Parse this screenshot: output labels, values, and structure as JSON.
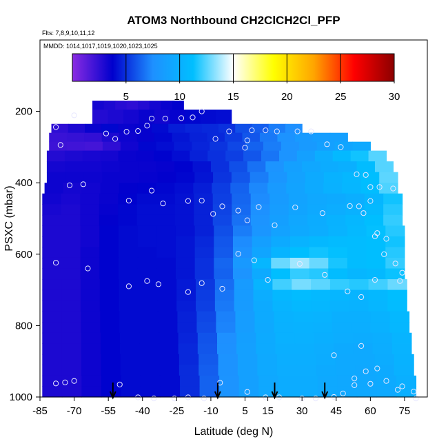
{
  "chart_data": {
    "type": "heatmap",
    "title": "ATOM3 Northbound CH2ClCH2Cl_PFP",
    "flights_label": "Flts: 7,8,9,10,11,12",
    "dates_label": "MMDD: 1014,1017,1019,1020,1023,1025",
    "xlabel": "Latitude (deg N)",
    "ylabel": "PSXC (mbar)",
    "xlim": [
      -85,
      85
    ],
    "ylim": [
      1000,
      0
    ],
    "x_ticks": [
      -85,
      -70,
      -55,
      -40,
      -25,
      -10,
      5,
      15,
      30,
      45,
      60,
      75
    ],
    "y_ticks": [
      200,
      400,
      600,
      800,
      1000
    ],
    "colorbar": {
      "min": 0,
      "max": 30,
      "ticks": [
        5,
        10,
        15,
        20,
        25,
        30
      ],
      "colors": [
        "#8a2be2",
        "#0000cd",
        "#1e90ff",
        "#00bfff",
        "#ffffff",
        "#ffff00",
        "#ffa500",
        "#ff0000",
        "#8b0000"
      ]
    },
    "grid_rows": [
      {
        "p_top": 170,
        "p_bot": 195,
        "lat0": -62,
        "lat1": -22,
        "values": [
          3.2,
          3.0,
          2.7,
          2.5,
          2.8,
          3.2,
          3.5,
          3.7
        ]
      },
      {
        "p_top": 195,
        "p_bot": 235,
        "lat0": -62,
        "lat1": -1,
        "values": [
          2.8,
          3.0,
          3.2,
          3.5,
          3.3,
          3.6,
          3.9,
          4.0,
          4.1
        ]
      },
      {
        "p_top": 235,
        "p_bot": 260,
        "lat0": -80,
        "lat1": 30,
        "values": [
          2.5,
          3.0,
          3.5,
          3.9,
          3.5,
          3.6,
          4.0,
          4.5,
          4.7,
          4.8,
          5.0,
          5.8,
          6.2,
          7.0,
          7.5
        ]
      },
      {
        "p_top": 260,
        "p_bot": 285,
        "lat0": -81,
        "lat1": 50,
        "values": [
          2.2,
          2.3,
          2.4,
          3.0,
          3.4,
          3.6,
          3.9,
          4.3,
          4.6,
          4.8,
          5.3,
          6.0,
          6.9,
          7.7,
          8.3,
          8.6,
          8.8
        ]
      },
      {
        "p_top": 285,
        "p_bot": 310,
        "lat0": -81,
        "lat1": 60,
        "values": [
          2.1,
          2.0,
          1.9,
          2.5,
          3.3,
          3.9,
          4.1,
          4.4,
          4.7,
          5.1,
          5.6,
          6.3,
          7.0,
          7.8,
          8.3,
          8.8,
          9.2,
          9.5
        ]
      },
      {
        "p_top": 310,
        "p_bot": 340,
        "lat0": -82,
        "lat1": 67,
        "values": [
          2.8,
          3.0,
          3.1,
          3.2,
          3.5,
          3.6,
          3.8,
          4.1,
          4.6,
          5.0,
          5.4,
          6.0,
          6.8,
          7.8,
          8.8,
          9.8,
          10.8,
          11.5,
          12.5
        ]
      },
      {
        "p_top": 340,
        "p_bot": 370,
        "lat0": -82,
        "lat1": 70,
        "values": [
          3.2,
          3.3,
          3.3,
          3.4,
          3.5,
          3.5,
          3.6,
          3.8,
          4.2,
          5.0,
          5.8,
          6.7,
          7.8,
          8.8,
          9.3,
          9.7,
          10.0,
          11.0,
          12.5
        ]
      },
      {
        "p_top": 370,
        "p_bot": 400,
        "lat0": -82,
        "lat1": 72,
        "values": [
          3.4,
          3.4,
          3.4,
          3.5,
          3.5,
          3.6,
          3.7,
          3.9,
          4.3,
          5.1,
          6.0,
          7.0,
          8.0,
          8.9,
          9.6,
          10.2,
          10.6,
          11.2,
          12.6
        ]
      },
      {
        "p_top": 400,
        "p_bot": 430,
        "lat0": -83,
        "lat1": 72,
        "values": [
          3.4,
          3.2,
          3.3,
          3.5,
          3.7,
          3.8,
          3.9,
          4.1,
          4.5,
          5.3,
          6.3,
          7.3,
          8.3,
          9.0,
          9.6,
          10.1,
          10.5,
          11.1,
          12.4
        ]
      },
      {
        "p_top": 430,
        "p_bot": 460,
        "lat0": -84,
        "lat1": 74,
        "values": [
          3.3,
          3.1,
          3.3,
          3.5,
          3.8,
          4.0,
          4.0,
          4.2,
          4.6,
          5.4,
          6.4,
          7.4,
          8.4,
          9.0,
          9.4,
          9.6,
          9.9,
          10.5,
          11.5
        ]
      },
      {
        "p_top": 460,
        "p_bot": 490,
        "lat0": -84,
        "lat1": 74,
        "values": [
          3.1,
          3.0,
          3.3,
          3.6,
          3.9,
          4.1,
          4.1,
          4.2,
          4.6,
          5.5,
          6.5,
          7.6,
          8.5,
          9.1,
          9.5,
          9.8,
          10.1,
          10.8,
          11.8
        ]
      },
      {
        "p_top": 490,
        "p_bot": 520,
        "lat0": -84,
        "lat1": 74,
        "values": [
          3.0,
          3.0,
          3.3,
          3.7,
          3.9,
          4.1,
          4.1,
          4.2,
          4.6,
          5.6,
          6.7,
          7.8,
          8.7,
          9.3,
          9.7,
          10.2,
          10.6,
          11.2,
          12.0
        ]
      },
      {
        "p_top": 520,
        "p_bot": 550,
        "lat0": -84,
        "lat1": 75,
        "values": [
          3.0,
          3.0,
          3.3,
          3.8,
          4.0,
          4.1,
          4.1,
          4.2,
          4.6,
          5.8,
          7.0,
          8.0,
          8.9,
          9.5,
          9.8,
          10.3,
          10.8,
          11.3,
          11.8
        ]
      },
      {
        "p_top": 550,
        "p_bot": 580,
        "lat0": -84,
        "lat1": 75,
        "values": [
          3.0,
          3.0,
          3.3,
          3.8,
          4.0,
          4.1,
          4.1,
          4.3,
          4.8,
          6.0,
          7.4,
          8.7,
          9.6,
          10.3,
          10.7,
          10.9,
          11.0,
          11.2,
          11.5
        ]
      },
      {
        "p_top": 580,
        "p_bot": 610,
        "lat0": -84,
        "lat1": 75,
        "values": [
          3.0,
          3.0,
          3.4,
          3.8,
          4.0,
          4.0,
          4.1,
          4.3,
          4.9,
          6.1,
          7.6,
          9.2,
          10.4,
          11.2,
          11.5,
          11.3,
          11.0,
          11.2,
          11.8
        ]
      },
      {
        "p_top": 610,
        "p_bot": 640,
        "lat0": -84,
        "lat1": 75,
        "values": [
          3.0,
          3.0,
          3.4,
          3.8,
          4.0,
          4.0,
          4.0,
          4.3,
          5.0,
          6.4,
          8.2,
          10.5,
          12.8,
          13.6,
          12.8,
          11.6,
          11.0,
          11.2,
          12.0
        ]
      },
      {
        "p_top": 640,
        "p_bot": 670,
        "lat0": -84,
        "lat1": 75,
        "values": [
          3.0,
          3.0,
          3.4,
          3.8,
          4.0,
          4.0,
          4.0,
          4.3,
          5.0,
          6.3,
          7.8,
          9.6,
          11.2,
          12.0,
          11.8,
          11.0,
          10.5,
          10.8,
          11.4
        ]
      },
      {
        "p_top": 670,
        "p_bot": 700,
        "lat0": -84,
        "lat1": 76,
        "values": [
          3.0,
          3.0,
          3.4,
          3.8,
          4.0,
          4.0,
          4.0,
          4.4,
          5.2,
          6.6,
          8.4,
          10.4,
          12.2,
          13.0,
          12.6,
          12.0,
          11.8,
          12.2,
          12.8
        ]
      },
      {
        "p_top": 700,
        "p_bot": 730,
        "lat0": -84,
        "lat1": 76,
        "values": [
          3.0,
          3.0,
          3.4,
          3.8,
          4.0,
          4.0,
          4.0,
          4.4,
          5.3,
          6.8,
          8.4,
          9.8,
          10.7,
          11.0,
          10.8,
          10.5,
          10.4,
          10.7,
          11.2
        ]
      },
      {
        "p_top": 730,
        "p_bot": 760,
        "lat0": -84,
        "lat1": 76,
        "values": [
          3.0,
          3.0,
          3.4,
          3.8,
          4.0,
          4.0,
          4.0,
          4.5,
          5.4,
          6.9,
          8.4,
          9.6,
          10.4,
          10.7,
          10.6,
          10.3,
          10.2,
          10.5,
          11.0
        ]
      },
      {
        "p_top": 760,
        "p_bot": 790,
        "lat0": -84,
        "lat1": 77,
        "values": [
          3.0,
          3.0,
          3.4,
          3.8,
          4.0,
          4.0,
          4.0,
          4.6,
          5.6,
          7.1,
          8.5,
          9.6,
          10.2,
          10.4,
          10.3,
          10.0,
          10.0,
          10.2,
          10.7
        ]
      },
      {
        "p_top": 790,
        "p_bot": 820,
        "lat0": -84,
        "lat1": 77,
        "values": [
          3.0,
          3.0,
          3.4,
          3.8,
          4.0,
          4.0,
          4.0,
          4.6,
          5.7,
          7.2,
          8.5,
          9.5,
          10.1,
          10.2,
          10.1,
          9.9,
          9.9,
          10.1,
          10.6
        ]
      },
      {
        "p_top": 820,
        "p_bot": 850,
        "lat0": -84,
        "lat1": 78,
        "values": [
          3.0,
          3.0,
          3.4,
          3.8,
          4.0,
          4.0,
          4.0,
          4.7,
          5.9,
          7.5,
          8.7,
          9.6,
          10.1,
          10.1,
          10.0,
          9.8,
          9.7,
          9.9,
          10.4
        ]
      },
      {
        "p_top": 850,
        "p_bot": 880,
        "lat0": -84,
        "lat1": 78,
        "values": [
          3.0,
          3.0,
          3.4,
          3.8,
          4.0,
          4.0,
          4.0,
          4.8,
          6.0,
          7.6,
          8.8,
          9.6,
          10.0,
          10.0,
          9.8,
          9.6,
          9.5,
          9.8,
          10.3
        ]
      },
      {
        "p_top": 880,
        "p_bot": 910,
        "lat0": -84,
        "lat1": 79,
        "values": [
          3.0,
          3.0,
          3.4,
          3.8,
          4.0,
          4.0,
          4.0,
          4.8,
          6.1,
          7.7,
          8.8,
          9.5,
          9.9,
          9.9,
          9.7,
          9.5,
          9.5,
          9.7,
          10.2
        ]
      },
      {
        "p_top": 910,
        "p_bot": 940,
        "lat0": -84,
        "lat1": 79,
        "values": [
          3.0,
          3.0,
          3.4,
          3.8,
          4.0,
          4.0,
          4.0,
          4.9,
          6.2,
          7.7,
          8.8,
          9.5,
          9.8,
          9.8,
          9.6,
          9.5,
          9.4,
          9.6,
          10.1
        ]
      },
      {
        "p_top": 940,
        "p_bot": 970,
        "lat0": -84,
        "lat1": 80,
        "values": [
          3.0,
          3.0,
          3.4,
          3.8,
          4.0,
          4.0,
          4.0,
          4.9,
          6.3,
          7.8,
          8.8,
          9.4,
          9.7,
          9.7,
          9.5,
          9.4,
          9.4,
          9.6,
          10.0
        ]
      },
      {
        "p_top": 970,
        "p_bot": 1000,
        "lat0": -84,
        "lat1": 80,
        "values": [
          3.0,
          3.0,
          3.4,
          3.8,
          4.0,
          4.0,
          4.0,
          4.9,
          6.3,
          7.8,
          8.8,
          9.4,
          9.7,
          9.7,
          9.5,
          9.4,
          9.4,
          9.5,
          10.0
        ]
      }
    ],
    "sample_points": [
      [
        -70,
        211
      ],
      [
        -78,
        244
      ],
      [
        -76,
        294
      ],
      [
        -72,
        407
      ],
      [
        -66,
        404
      ],
      [
        -56,
        262
      ],
      [
        -52,
        277
      ],
      [
        -47,
        257
      ],
      [
        -42,
        255
      ],
      [
        -38,
        240
      ],
      [
        -36,
        220
      ],
      [
        -30,
        220
      ],
      [
        -23,
        219
      ],
      [
        -18,
        217
      ],
      [
        -14,
        200
      ],
      [
        -8,
        277
      ],
      [
        -2,
        256
      ],
      [
        6,
        281
      ],
      [
        5,
        302
      ],
      [
        8,
        253
      ],
      [
        14,
        253
      ],
      [
        19,
        256
      ],
      [
        28,
        256
      ],
      [
        34,
        256
      ],
      [
        41,
        292
      ],
      [
        47,
        300
      ],
      [
        54,
        376
      ],
      [
        58,
        378
      ],
      [
        60,
        412
      ],
      [
        64,
        412
      ],
      [
        70,
        416
      ],
      [
        -46,
        450
      ],
      [
        -36,
        422
      ],
      [
        -31,
        458
      ],
      [
        -20,
        451
      ],
      [
        -14,
        450
      ],
      [
        -9,
        487
      ],
      [
        -5,
        466
      ],
      [
        2,
        478
      ],
      [
        6,
        505
      ],
      [
        11,
        468
      ],
      [
        18,
        519
      ],
      [
        27,
        469
      ],
      [
        39,
        485
      ],
      [
        51,
        465
      ],
      [
        55,
        466
      ],
      [
        57,
        485
      ],
      [
        60,
        451
      ],
      [
        62,
        550
      ],
      [
        67,
        557
      ],
      [
        63,
        541
      ],
      [
        -78,
        624
      ],
      [
        -64,
        640
      ],
      [
        -46,
        690
      ],
      [
        -38,
        675
      ],
      [
        -33,
        684
      ],
      [
        -20,
        706
      ],
      [
        -14,
        681
      ],
      [
        -5,
        697
      ],
      [
        2,
        599
      ],
      [
        9,
        617
      ],
      [
        15,
        672
      ],
      [
        29,
        627
      ],
      [
        40,
        658
      ],
      [
        50,
        704
      ],
      [
        56,
        720
      ],
      [
        62,
        672
      ],
      [
        66,
        600
      ],
      [
        71,
        626
      ],
      [
        74,
        652
      ],
      [
        73,
        675
      ],
      [
        56,
        857
      ],
      [
        44,
        883
      ],
      [
        53,
        948
      ],
      [
        58,
        928
      ],
      [
        63,
        920
      ],
      [
        67,
        955
      ],
      [
        74,
        970
      ],
      [
        79,
        985
      ],
      [
        -78,
        962
      ],
      [
        -74,
        959
      ],
      [
        -70,
        955
      ],
      [
        -50,
        965
      ],
      [
        -42,
        1001
      ],
      [
        -35,
        1004
      ],
      [
        -26,
        1004
      ],
      [
        -20,
        1001
      ],
      [
        -13,
        1004
      ],
      [
        -6,
        960
      ],
      [
        6,
        986
      ],
      [
        14,
        1001
      ],
      [
        20,
        1001
      ],
      [
        30,
        1004
      ],
      [
        36,
        1004
      ],
      [
        44,
        1000
      ],
      [
        48,
        990
      ],
      [
        53,
        967
      ],
      [
        60,
        963
      ],
      [
        72,
        980
      ],
      [
        80,
        1004
      ]
    ],
    "flight_arrows_lat": [
      -53,
      -7,
      18,
      40
    ]
  }
}
